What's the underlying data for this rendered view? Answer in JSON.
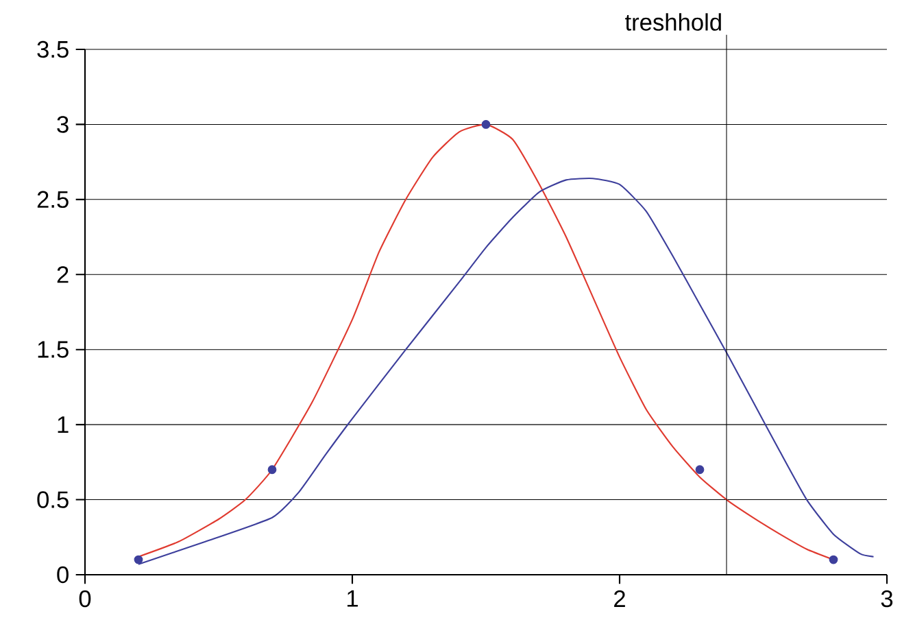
{
  "chart_data": {
    "type": "line",
    "xlim": [
      0,
      3
    ],
    "ylim": [
      0,
      3.5
    ],
    "xticks": [
      0,
      1,
      2,
      3
    ],
    "yticks": [
      0,
      0.5,
      1,
      1.5,
      2,
      2.5,
      3,
      3.5
    ],
    "grid": "y",
    "series": [
      {
        "color": "#e03a2f",
        "marker": "none",
        "x": [
          0.2,
          0.35,
          0.5,
          0.6,
          0.7,
          0.85,
          1.0,
          1.1,
          1.2,
          1.3,
          1.4,
          1.5,
          1.6,
          1.7,
          1.8,
          1.9,
          2.0,
          2.1,
          2.2,
          2.3,
          2.4,
          2.5,
          2.6,
          2.7,
          2.8
        ],
        "values": [
          0.12,
          0.22,
          0.37,
          0.5,
          0.7,
          1.15,
          1.7,
          2.15,
          2.5,
          2.78,
          2.95,
          3.0,
          2.9,
          2.6,
          2.25,
          1.85,
          1.45,
          1.1,
          0.85,
          0.65,
          0.5,
          0.38,
          0.27,
          0.17,
          0.1
        ]
      },
      {
        "color": "#3d3f9c",
        "marker": "none",
        "x": [
          0.2,
          0.45,
          0.7,
          0.8,
          0.9,
          1.0,
          1.2,
          1.4,
          1.5,
          1.6,
          1.7,
          1.8,
          1.9,
          2.0,
          2.1,
          2.2,
          2.3,
          2.4,
          2.5,
          2.6,
          2.7,
          2.8,
          2.9,
          2.95
        ],
        "values": [
          0.07,
          0.22,
          0.38,
          0.55,
          0.8,
          1.04,
          1.5,
          1.95,
          2.18,
          2.38,
          2.55,
          2.63,
          2.64,
          2.6,
          2.42,
          2.12,
          1.8,
          1.48,
          1.15,
          0.82,
          0.5,
          0.27,
          0.14,
          0.12
        ]
      },
      {
        "type": "scatter",
        "color": "#3d3f9c",
        "marker": "circle",
        "x": [
          0.2,
          0.7,
          1.5,
          2.3,
          2.8
        ],
        "values": [
          0.1,
          0.7,
          3.0,
          0.7,
          0.1
        ]
      }
    ],
    "ref_lines": [
      {
        "axis": "x",
        "value": 2.4,
        "label": "treshhold",
        "color": "#000000"
      }
    ]
  }
}
